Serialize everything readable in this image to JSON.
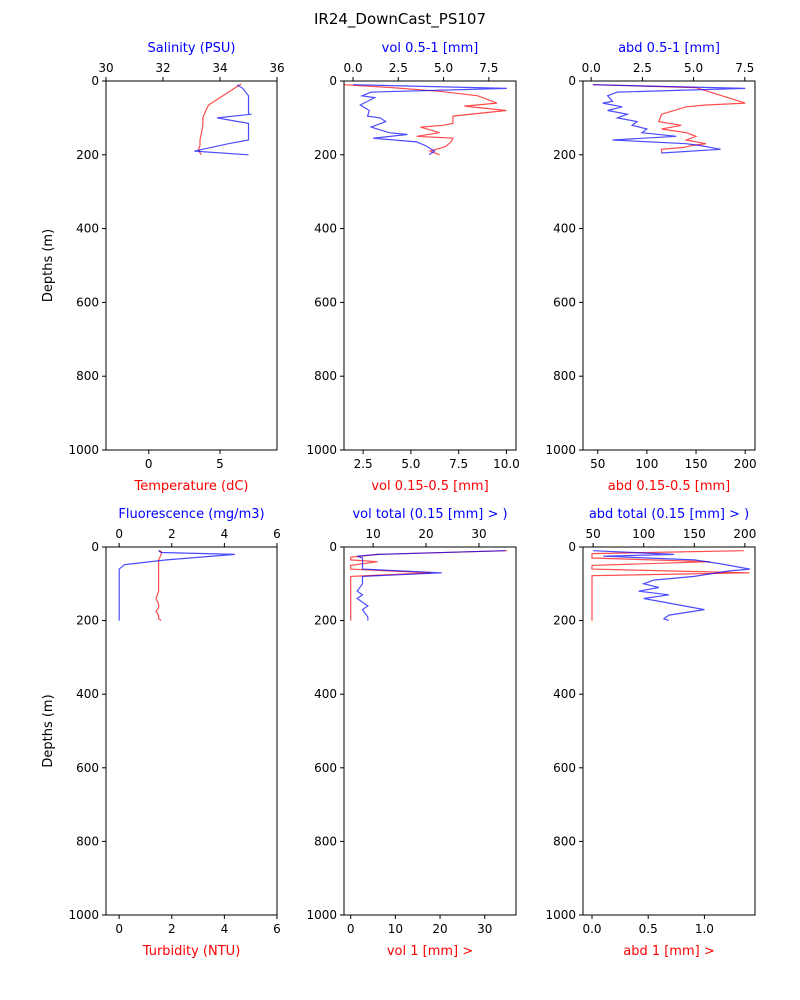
{
  "figure": {
    "title": "IR24_DownCast_PS107",
    "red": "#ff0000",
    "blue": "#0000ff"
  },
  "chart_data": [
    {
      "type": "line",
      "ylabel": "Depths (m)",
      "ylim": [
        1000,
        0
      ],
      "y_ticks": [
        0,
        200,
        400,
        600,
        800,
        1000
      ],
      "bottom_axis": {
        "label": "Temperature (dC)",
        "color": "red",
        "lim": [
          -3,
          9
        ],
        "ticks": [
          0,
          5
        ],
        "tick_labels": [
          "0",
          "5"
        ]
      },
      "top_axis": {
        "label": "Salinity (PSU)",
        "color": "blue",
        "lim": [
          30,
          36
        ],
        "ticks": [
          30,
          32,
          34,
          36
        ],
        "tick_labels": [
          "30",
          "32",
          "34",
          "36"
        ]
      },
      "series": [
        {
          "axis": "bottom",
          "color": "red",
          "x": [
            6.5,
            6.2,
            5.8,
            5.0,
            4.2,
            4.0,
            3.8,
            3.8,
            3.7,
            3.6,
            3.6,
            3.5,
            3.6,
            3.7
          ],
          "y": [
            8,
            15,
            25,
            45,
            65,
            80,
            100,
            120,
            140,
            160,
            175,
            185,
            195,
            200
          ]
        },
        {
          "axis": "top",
          "color": "blue",
          "x": [
            34.6,
            34.8,
            35.0,
            35.0,
            35.0,
            35.1,
            33.9,
            35.0,
            35.0,
            34.3,
            33.1,
            35.0
          ],
          "y": [
            10,
            20,
            40,
            70,
            90,
            90,
            100,
            115,
            160,
            170,
            190,
            200
          ]
        }
      ]
    },
    {
      "type": "line",
      "ylim": [
        1000,
        0
      ],
      "y_ticks": [
        0,
        200,
        400,
        600,
        800,
        1000
      ],
      "bottom_axis": {
        "label": "vol 0.15-0.5 [mm]",
        "color": "red",
        "lim": [
          1.5,
          10.5
        ],
        "ticks": [
          2.5,
          5.0,
          7.5,
          10.0
        ],
        "tick_labels": [
          "2.5",
          "5.0",
          "7.5",
          "10.0"
        ]
      },
      "top_axis": {
        "label": "vol 0.5-1 [mm]",
        "color": "blue",
        "lim": [
          -0.5,
          9.0
        ],
        "ticks": [
          0.0,
          2.5,
          5.0,
          7.5
        ],
        "tick_labels": [
          "0.0",
          "2.5",
          "5.0",
          "7.5"
        ]
      },
      "series": [
        {
          "axis": "bottom",
          "color": "red",
          "x": [
            1.5,
            4.0,
            6.5,
            8.5,
            9.5,
            7.8,
            10.0,
            7.2,
            7.2,
            6.7,
            5.5,
            6.5,
            5.3,
            7.2,
            7.1,
            6.8,
            6.0,
            6.5
          ],
          "y": [
            10,
            18,
            28,
            40,
            60,
            68,
            80,
            95,
            115,
            120,
            125,
            140,
            150,
            155,
            165,
            178,
            190,
            200
          ]
        },
        {
          "axis": "top",
          "color": "blue",
          "x": [
            0.0,
            8.5,
            1.0,
            0.5,
            1.2,
            0.4,
            0.9,
            0.8,
            1.5,
            1.8,
            1.0,
            2.0,
            3.0,
            1.1,
            3.5,
            4.0,
            4.5,
            4.2
          ],
          "y": [
            10,
            20,
            30,
            40,
            45,
            65,
            80,
            95,
            100,
            110,
            125,
            140,
            145,
            155,
            165,
            175,
            190,
            200
          ]
        }
      ]
    },
    {
      "type": "line",
      "ylim": [
        1000,
        0
      ],
      "y_ticks": [
        0,
        200,
        400,
        600,
        800,
        1000
      ],
      "bottom_axis": {
        "label": "abd 0.15-0.5 [mm]",
        "color": "red",
        "lim": [
          35,
          210
        ],
        "ticks": [
          50,
          100,
          150,
          200
        ],
        "tick_labels": [
          "50",
          "100",
          "150",
          "200"
        ]
      },
      "top_axis": {
        "label": "abd 0.5-1 [mm]",
        "color": "blue",
        "lim": [
          -0.4,
          8.0
        ],
        "ticks": [
          0.0,
          2.5,
          5.0,
          7.5
        ],
        "tick_labels": [
          "0.0",
          "2.5",
          "5.0",
          "7.5"
        ]
      },
      "series": [
        {
          "axis": "bottom",
          "color": "red",
          "x": [
            45,
            150,
            200,
            160,
            140,
            115,
            112,
            135,
            115,
            140,
            150,
            140,
            160,
            145,
            138,
            115,
            115
          ],
          "y": [
            10,
            18,
            60,
            65,
            70,
            90,
            110,
            120,
            130,
            140,
            150,
            160,
            170,
            175,
            180,
            185,
            195
          ]
        },
        {
          "axis": "bottom",
          "color": "blue",
          "x": [
            45,
            200,
            70,
            60,
            65,
            55,
            75,
            60,
            80,
            70,
            90,
            85,
            100,
            95,
            130,
            65,
            140,
            155,
            175,
            115
          ],
          "y": [
            10,
            20,
            30,
            40,
            55,
            60,
            70,
            80,
            90,
            100,
            110,
            120,
            130,
            140,
            150,
            160,
            170,
            175,
            185,
            195
          ]
        }
      ]
    },
    {
      "type": "line",
      "ylabel": "Depths (m)",
      "ylim": [
        1000,
        0
      ],
      "y_ticks": [
        0,
        200,
        400,
        600,
        800,
        1000
      ],
      "bottom_axis": {
        "label": "Turbidity (NTU)",
        "color": "red",
        "lim": [
          -0.5,
          6.0
        ],
        "ticks": [
          0,
          2,
          4,
          6
        ],
        "tick_labels": [
          "0",
          "2",
          "4",
          "6"
        ]
      },
      "top_axis": {
        "label": "Fluorescence (mg/m3)",
        "color": "blue",
        "lim": [
          -0.5,
          6.0
        ],
        "ticks": [
          0,
          2,
          4,
          6
        ],
        "tick_labels": [
          "0",
          "2",
          "4",
          "6"
        ]
      },
      "series": [
        {
          "axis": "bottom",
          "color": "red",
          "x": [
            1.5,
            1.6,
            1.6,
            1.5,
            1.5,
            1.5,
            1.5,
            1.5,
            1.4,
            1.5,
            1.5,
            1.4,
            1.5,
            1.5,
            1.6
          ],
          "y": [
            10,
            12,
            20,
            35,
            60,
            80,
            100,
            120,
            140,
            155,
            165,
            175,
            185,
            195,
            200
          ]
        },
        {
          "axis": "top",
          "color": "blue",
          "x": [
            1.5,
            1.6,
            4.4,
            1.8,
            0.2,
            0.0,
            0.0,
            0.0,
            0.0
          ],
          "y": [
            10,
            15,
            20,
            35,
            48,
            60,
            100,
            150,
            200
          ]
        }
      ]
    },
    {
      "type": "line",
      "ylim": [
        1000,
        0
      ],
      "y_ticks": [
        0,
        200,
        400,
        600,
        800,
        1000
      ],
      "bottom_axis": {
        "label": "vol 1 [mm] >",
        "color": "red",
        "lim": [
          -1.5,
          37
        ],
        "ticks": [
          0,
          10,
          20,
          30
        ],
        "tick_labels": [
          "0",
          "10",
          "20",
          "30"
        ]
      },
      "top_axis": {
        "label": "vol total (0.15 [mm] > )",
        "color": "blue",
        "lim": [
          4.5,
          37
        ],
        "ticks": [
          10,
          20,
          30
        ],
        "tick_labels": [
          "10",
          "20",
          "30"
        ]
      },
      "series": [
        {
          "axis": "bottom",
          "color": "red",
          "x": [
            35,
            6,
            0,
            0,
            6,
            0,
            0,
            0,
            18,
            0,
            0,
            0,
            0,
            0,
            0,
            0
          ],
          "y": [
            10,
            20,
            28,
            35,
            40,
            50,
            55,
            60,
            70,
            80,
            100,
            120,
            140,
            160,
            180,
            200
          ]
        },
        {
          "axis": "top",
          "color": "blue",
          "x": [
            35,
            11,
            7,
            8,
            8,
            23,
            8,
            8,
            7,
            8,
            7,
            8,
            9,
            8,
            9,
            9
          ],
          "y": [
            10,
            20,
            25,
            30,
            60,
            70,
            80,
            100,
            120,
            130,
            140,
            150,
            160,
            170,
            190,
            200
          ]
        }
      ]
    },
    {
      "type": "line",
      "ylim": [
        1000,
        0
      ],
      "y_ticks": [
        0,
        200,
        400,
        600,
        800,
        1000
      ],
      "bottom_axis": {
        "label": "abd 1 [mm] >",
        "color": "red",
        "lim": [
          -0.08,
          1.45
        ],
        "ticks": [
          0.0,
          0.5,
          1.0
        ],
        "tick_labels": [
          "0.0",
          "0.5",
          "1.0"
        ]
      },
      "top_axis": {
        "label": "abd total (0.15 [mm] > )",
        "color": "blue",
        "lim": [
          40,
          210
        ],
        "ticks": [
          50,
          100,
          150,
          200
        ],
        "tick_labels": [
          "50",
          "100",
          "150",
          "200"
        ]
      },
      "series": [
        {
          "axis": "bottom",
          "color": "red",
          "x": [
            1.35,
            0.0,
            0.0,
            1.05,
            0.0,
            0.0,
            1.4,
            0.0,
            0.0,
            0.0,
            0.0
          ],
          "y": [
            10,
            18,
            30,
            40,
            50,
            60,
            70,
            78,
            100,
            150,
            200
          ]
        },
        {
          "axis": "top",
          "color": "blue",
          "x": [
            50,
            130,
            60,
            150,
            175,
            205,
            185,
            150,
            110,
            100,
            115,
            95,
            125,
            100,
            160,
            125,
            120,
            125
          ],
          "y": [
            10,
            20,
            25,
            35,
            45,
            60,
            65,
            80,
            90,
            100,
            110,
            120,
            130,
            140,
            170,
            185,
            195,
            200
          ]
        }
      ]
    }
  ]
}
